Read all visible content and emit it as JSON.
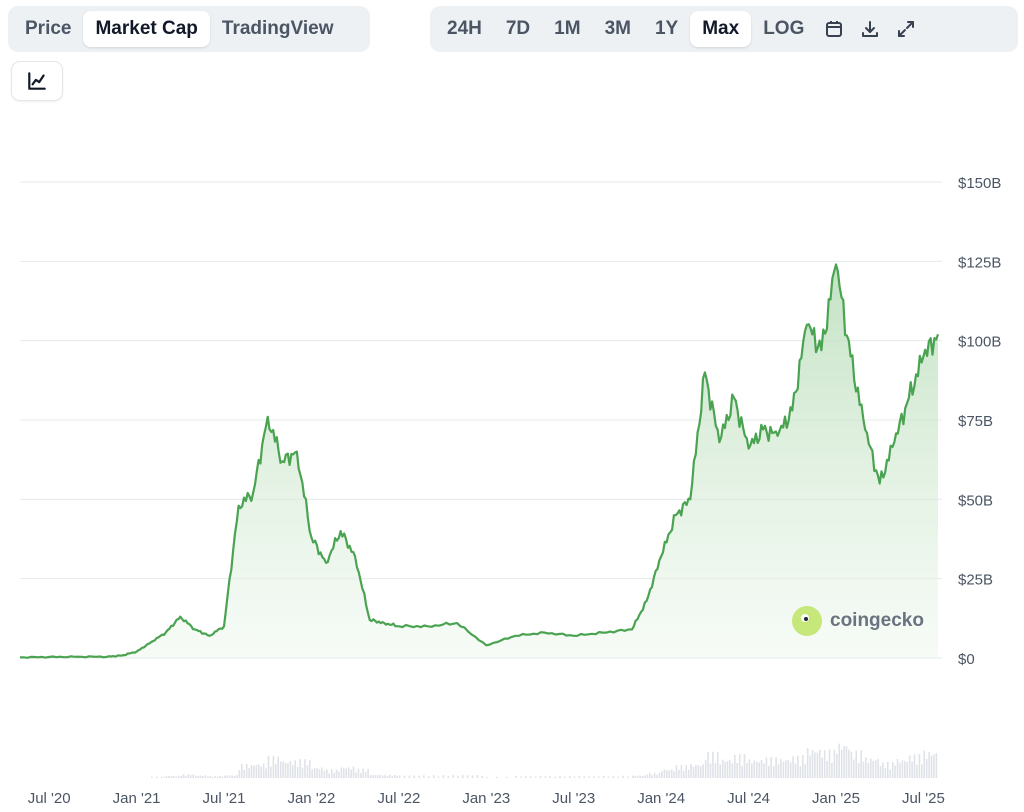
{
  "view_tabs": [
    {
      "label": "Price",
      "active": false
    },
    {
      "label": "Market Cap",
      "active": true
    },
    {
      "label": "TradingView",
      "active": false
    }
  ],
  "range_tabs": [
    {
      "label": "24H",
      "active": false
    },
    {
      "label": "7D",
      "active": false
    },
    {
      "label": "1M",
      "active": false
    },
    {
      "label": "3M",
      "active": false
    },
    {
      "label": "1Y",
      "active": false
    },
    {
      "label": "Max",
      "active": true
    },
    {
      "label": "LOG",
      "active": false
    }
  ],
  "icons": {
    "chart_type": "line-chart-icon",
    "calendar": "calendar-icon",
    "download": "download-icon",
    "fullscreen": "expand-icon"
  },
  "watermark": "coingecko",
  "colors": {
    "line": "#4aa351",
    "fill_top": "#b9ddb9",
    "grid": "#e6e9ed",
    "volume": "#dfe3e8"
  },
  "chart_data": {
    "type": "area",
    "title": "",
    "xlabel": "",
    "ylabel": "",
    "x_tick_labels": [
      "Jul '20",
      "Jan '21",
      "Jul '21",
      "Jan '22",
      "Jul '22",
      "Jan '23",
      "Jul '23",
      "Jan '24",
      "Jul '24",
      "Jan '25",
      "Jul '25"
    ],
    "y_tick_labels": [
      "$0",
      "$25B",
      "$50B",
      "$75B",
      "$100B",
      "$125B",
      "$150B"
    ],
    "y_tick_values": [
      0,
      25,
      50,
      75,
      100,
      125,
      150
    ],
    "ylim": [
      0,
      150
    ],
    "y_unit": "billion USD",
    "grid": true,
    "x": [
      "2020-05",
      "2020-07",
      "2020-09",
      "2020-11",
      "2020-12",
      "2021-01",
      "2021-02",
      "2021-03",
      "2021-04",
      "2021-05",
      "2021-06",
      "2021-07",
      "2021-08",
      "2021-09",
      "2021-10",
      "2021-11",
      "2021-12",
      "2022-01",
      "2022-02",
      "2022-03",
      "2022-04",
      "2022-05",
      "2022-06",
      "2022-07",
      "2022-09",
      "2022-11",
      "2023-01",
      "2023-03",
      "2023-05",
      "2023-07",
      "2023-09",
      "2023-11",
      "2023-12",
      "2024-01",
      "2024-02",
      "2024-03",
      "2024-04",
      "2024-05",
      "2024-06",
      "2024-07",
      "2024-08",
      "2024-09",
      "2024-10",
      "2024-11",
      "2024-12",
      "2025-01",
      "2025-02",
      "2025-03",
      "2025-04",
      "2025-05",
      "2025-06",
      "2025-07",
      "2025-08"
    ],
    "series": [
      {
        "values": [
          0.2,
          0.3,
          0.4,
          0.4,
          0.8,
          2,
          5,
          8,
          13,
          9,
          7,
          10,
          48,
          52,
          76,
          62,
          65,
          38,
          30,
          40,
          32,
          12,
          11,
          10,
          10,
          11,
          4,
          7,
          8,
          7,
          8,
          9,
          18,
          32,
          45,
          50,
          90,
          68,
          82,
          66,
          72,
          70,
          78,
          105,
          97,
          124,
          95,
          72,
          55,
          68,
          82,
          95,
          102
        ]
      }
    ],
    "volume_bars": true
  }
}
